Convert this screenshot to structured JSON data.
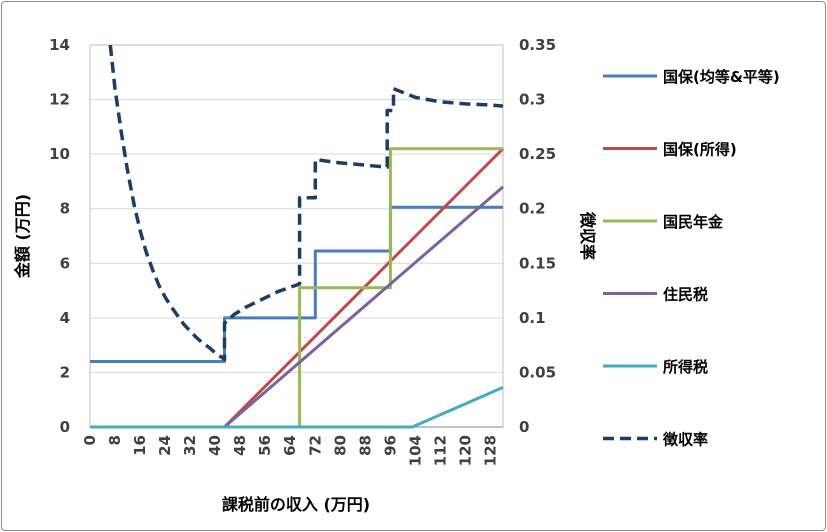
{
  "chart_data": {
    "type": "line",
    "xlabel": "課税前の収入 (万円)",
    "ylabel_left": "金額 (万円)",
    "ylabel_right": "徴収率",
    "x_range": [
      0,
      132
    ],
    "y_left_range": [
      0,
      14
    ],
    "y_right_range": [
      0,
      0.35
    ],
    "x_ticks": [
      "0",
      "8",
      "16",
      "24",
      "32",
      "40",
      "48",
      "56",
      "64",
      "72",
      "80",
      "88",
      "96",
      "104",
      "112",
      "120",
      "128"
    ],
    "y_left_ticks": [
      "0",
      "2",
      "4",
      "6",
      "8",
      "10",
      "12",
      "14"
    ],
    "y_right_ticks": [
      "0",
      "0.05",
      "0.1",
      "0.15",
      "0.2",
      "0.25",
      "0.3",
      "0.35"
    ],
    "grid": "horizontal",
    "legend_position": "right",
    "series": [
      {
        "name": "国保(均等&平等)",
        "color": "#4a7ebb",
        "axis": "left",
        "dash": "solid",
        "points": [
          [
            0,
            2.4
          ],
          [
            43,
            2.4
          ],
          [
            43,
            4.0
          ],
          [
            72,
            4.0
          ],
          [
            72,
            6.45
          ],
          [
            96,
            6.45
          ],
          [
            96,
            8.05
          ],
          [
            132,
            8.05
          ]
        ]
      },
      {
        "name": "国保(所得)",
        "color": "#be4b48",
        "axis": "left",
        "dash": "solid",
        "points": [
          [
            0,
            0
          ],
          [
            43,
            0
          ],
          [
            132,
            10.2
          ]
        ]
      },
      {
        "name": "国民年金",
        "color": "#98b954",
        "axis": "left",
        "dash": "solid",
        "points": [
          [
            0,
            0
          ],
          [
            67,
            0
          ],
          [
            67,
            5.1
          ],
          [
            67,
            5.1
          ],
          [
            67,
            1.4
          ],
          [
            67,
            5.1
          ],
          [
            67,
            5.1
          ]
        ],
        "steps": [
          [
            0,
            0
          ],
          [
            67,
            0
          ],
          [
            67,
            5.1
          ],
          [
            96,
            5.1
          ],
          [
            96,
            10.2
          ],
          [
            132,
            10.2
          ]
        ]
      },
      {
        "name": "住民税",
        "color": "#7d60a0",
        "axis": "left",
        "dash": "solid",
        "points": [
          [
            0,
            0
          ],
          [
            43,
            0
          ],
          [
            132,
            8.8
          ]
        ]
      },
      {
        "name": "所得税",
        "color": "#46aac5",
        "axis": "left",
        "dash": "solid",
        "points": [
          [
            0,
            0
          ],
          [
            103,
            0
          ],
          [
            132,
            1.45
          ]
        ]
      },
      {
        "name": "徴収率",
        "color": "#1f3d63",
        "axis": "right",
        "dash": "dashed",
        "points": [
          [
            6.5,
            0.35
          ],
          [
            8,
            0.31
          ],
          [
            10,
            0.27
          ],
          [
            12,
            0.235
          ],
          [
            14,
            0.205
          ],
          [
            16,
            0.18
          ],
          [
            18,
            0.16
          ],
          [
            20,
            0.144
          ],
          [
            22,
            0.13
          ],
          [
            24,
            0.119
          ],
          [
            26,
            0.11
          ],
          [
            28,
            0.102
          ],
          [
            30,
            0.094
          ],
          [
            32,
            0.088
          ],
          [
            34,
            0.082
          ],
          [
            36,
            0.077
          ],
          [
            38,
            0.073
          ],
          [
            40,
            0.068
          ],
          [
            42,
            0.064
          ],
          [
            43,
            0.062
          ],
          [
            43,
            0.095
          ],
          [
            46,
            0.103
          ],
          [
            50,
            0.11
          ],
          [
            55,
            0.117
          ],
          [
            60,
            0.124
          ],
          [
            64,
            0.128
          ],
          [
            67,
            0.131
          ],
          [
            67,
            0.21
          ],
          [
            72,
            0.21
          ],
          [
            72,
            0.245
          ],
          [
            80,
            0.242
          ],
          [
            88,
            0.24
          ],
          [
            95,
            0.238
          ],
          [
            95,
            0.29
          ],
          [
            97,
            0.29
          ],
          [
            97,
            0.31
          ],
          [
            104,
            0.302
          ],
          [
            112,
            0.298
          ],
          [
            120,
            0.296
          ],
          [
            128,
            0.295
          ],
          [
            132,
            0.294
          ]
        ]
      }
    ]
  }
}
